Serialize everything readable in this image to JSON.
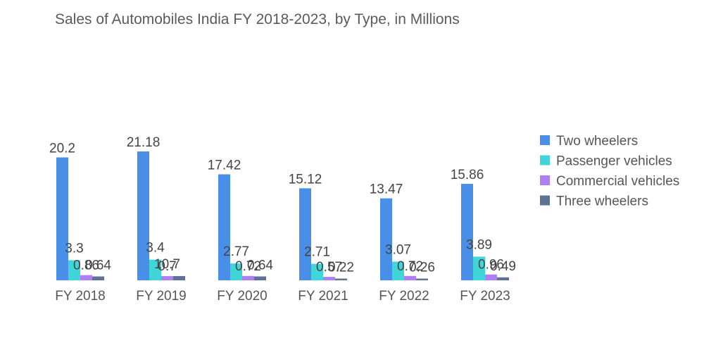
{
  "chart_data": {
    "type": "bar",
    "title": "Sales of Automobiles India FY 2018-2023, by Type, in Millions",
    "xlabel": "",
    "ylabel": "",
    "ylim": [
      0,
      21.18
    ],
    "grid": false,
    "legend_position": "right",
    "categories": [
      "FY 2018",
      "FY 2019",
      "FY 2020",
      "FY 2021",
      "FY 2022",
      "FY 2023"
    ],
    "series": [
      {
        "name": "Two wheelers",
        "color": "#4a8fe7",
        "values": [
          20.2,
          21.18,
          17.42,
          15.12,
          13.47,
          15.86
        ],
        "labels": [
          "20.2",
          "21.18",
          "17.42",
          "15.12",
          "13.47",
          "15.86"
        ]
      },
      {
        "name": "Passenger vehicles",
        "color": "#3fd5d9",
        "values": [
          3.3,
          3.4,
          2.77,
          2.71,
          3.07,
          3.89
        ],
        "labels": [
          "3.3",
          "3.4",
          "2.77",
          "2.71",
          "3.07",
          "3.89"
        ]
      },
      {
        "name": "Commercial vehicles",
        "color": "#b07ff2",
        "values": [
          0.86,
          0.7,
          0.72,
          0.57,
          0.72,
          0.96
        ],
        "labels": [
          "0.86",
          "0.7",
          "0.72",
          "0.57",
          "0.72",
          "0.96"
        ]
      },
      {
        "name": "Three wheelers",
        "color": "#5e7393",
        "values": [
          0.64,
          0.7,
          0.64,
          0.22,
          0.26,
          0.49
        ],
        "labels": [
          "0.64",
          "",
          "0.64",
          "0.22",
          "0.26",
          "0.49"
        ]
      }
    ],
    "combined_labels": [
      "",
      "10.7",
      "",
      "",
      "",
      ""
    ]
  }
}
